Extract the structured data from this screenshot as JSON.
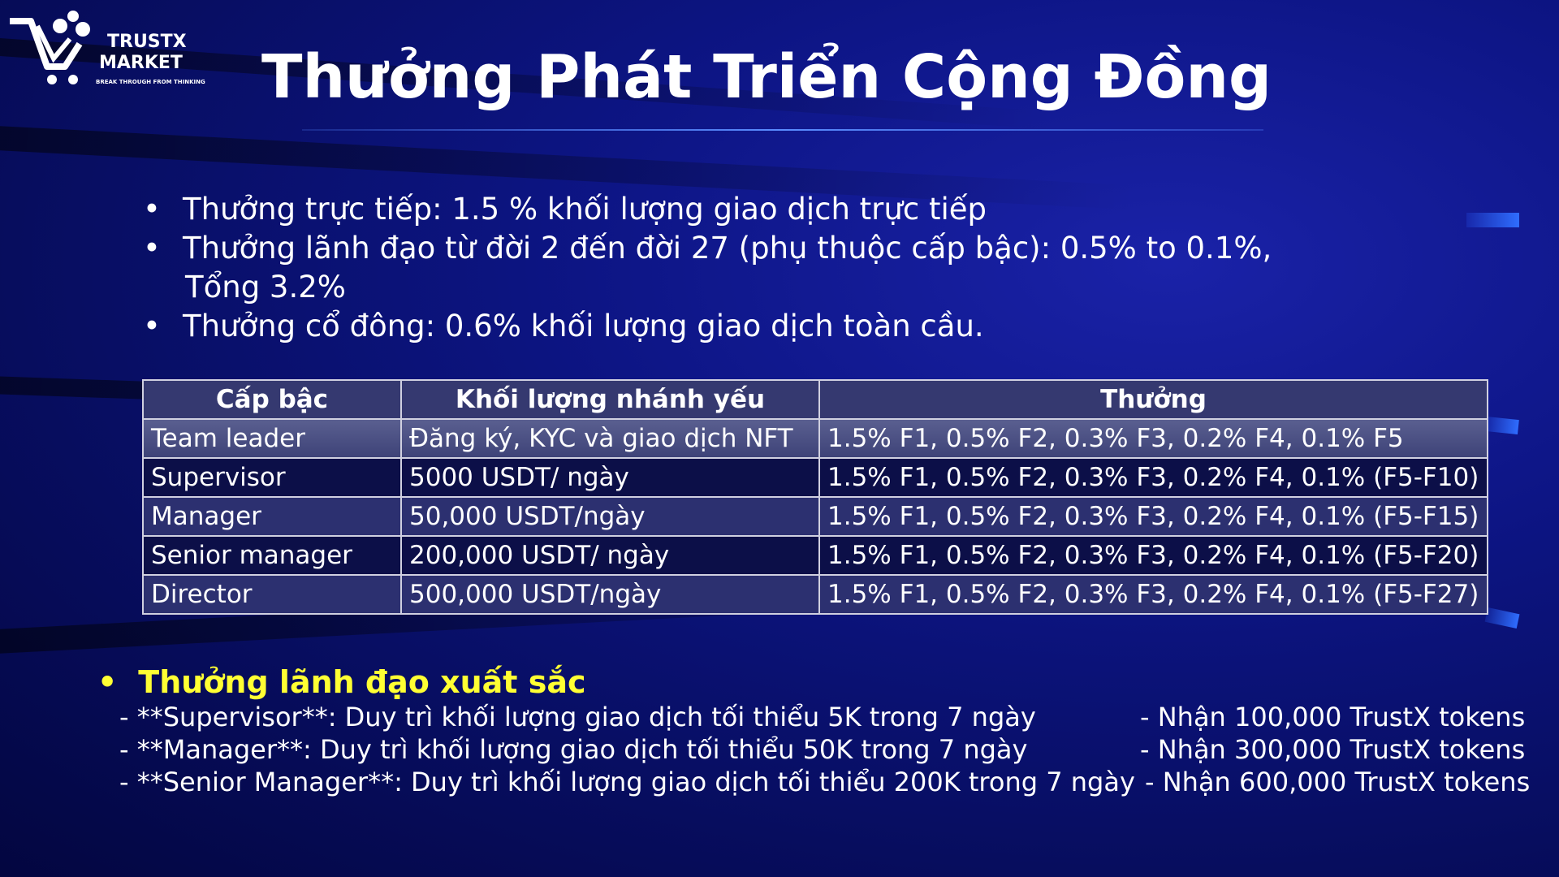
{
  "logo": {
    "line1": "TRUSTX",
    "line2": "MARKET",
    "tagline": "BREAK THROUGH FROM THINKING"
  },
  "title": "Thưởng Phát Triển Cộng Đồng",
  "bullets": [
    "Thưởng trực tiếp: 1.5 % khối lượng giao dịch trực tiếp",
    "Thưởng lãnh đạo từ đời 2 đến đời 27 (phụ thuộc cấp bậc): 0.5% to 0.1%,",
    "Thưởng cổ đông: 0.6% khối lượng giao dịch toàn cầu."
  ],
  "bullet2_cont": "Tổng 3.2%",
  "table": {
    "headers": [
      "Cấp bậc",
      "Khối lượng nhánh yếu",
      "Thưởng"
    ],
    "rows": [
      [
        "Team leader",
        "Đăng ký, KYC và giao dịch NFT",
        "1.5% F1, 0.5% F2, 0.3% F3, 0.2% F4, 0.1% F5"
      ],
      [
        "Supervisor",
        "5000 USDT/ ngày",
        "1.5% F1, 0.5% F2, 0.3% F3, 0.2% F4, 0.1% (F5-F10)"
      ],
      [
        "Manager",
        "50,000 USDT/ngày",
        "1.5% F1, 0.5% F2, 0.3% F3, 0.2% F4, 0.1% (F5-F15)"
      ],
      [
        "Senior manager",
        "200,000 USDT/ ngày",
        "1.5% F1, 0.5% F2, 0.3% F3, 0.2% F4, 0.1% (F5-F20)"
      ],
      [
        "Director",
        "500,000 USDT/ngày",
        "1.5% F1, 0.5% F2, 0.3% F3, 0.2% F4, 0.1% (F5-F27)"
      ]
    ]
  },
  "excellence": {
    "heading": "Thưởng lãnh đạo xuất sắc",
    "lines": [
      {
        "left": "- **Supervisor**: Duy trì khối lượng giao dịch tối thiểu 5K trong 7 ngày",
        "right": "- Nhận 100,000 TrustX tokens"
      },
      {
        "left": "- **Manager**: Duy trì khối lượng giao dịch tối thiểu 50K trong 7 ngày",
        "right": "- Nhận 300,000 TrustX tokens"
      },
      {
        "left": "- **Senior Manager**: Duy trì khối lượng giao dịch tối thiểu 200K trong 7 ngày",
        "right": "- Nhận 600,000 TrustX tokens"
      }
    ]
  },
  "colors": {
    "background": "#0a1070",
    "highlight": "#ffff33",
    "accent": "#2f6dff"
  }
}
